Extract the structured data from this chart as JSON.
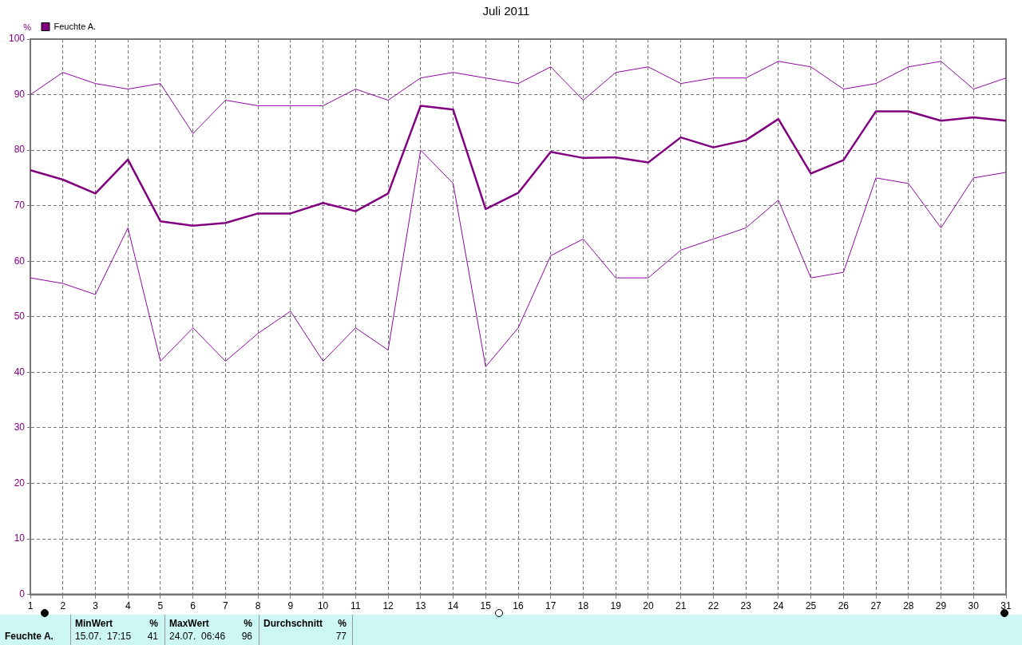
{
  "chart_data": {
    "type": "line",
    "title": "Juli 2011",
    "ylabel": "%",
    "x": [
      1,
      2,
      3,
      4,
      5,
      6,
      7,
      8,
      9,
      10,
      11,
      12,
      13,
      14,
      15,
      16,
      17,
      18,
      19,
      20,
      21,
      22,
      23,
      24,
      25,
      26,
      27,
      28,
      29,
      30,
      31
    ],
    "series": [
      {
        "color": "#8e08a0",
        "values": [
          90,
          94,
          92,
          91,
          92,
          83,
          89,
          88,
          88,
          88,
          91,
          89,
          93,
          94,
          93,
          92,
          95,
          89,
          94,
          95,
          92,
          93,
          93,
          96,
          95,
          91,
          92,
          95,
          96,
          91,
          93
        ]
      },
      {
        "name": "Feuchte A.",
        "color": "#800080",
        "values": [
          76.4,
          74.7,
          72.2,
          78.3,
          67.2,
          66.4,
          66.9,
          68.6,
          68.6,
          70.5,
          69,
          72.2,
          88,
          87.3,
          69.4,
          72.3,
          79.7,
          78.6,
          78.7,
          77.8,
          82.3,
          80.5,
          81.8,
          85.6,
          75.8,
          78.2,
          87,
          87,
          85.3,
          85.9,
          85.3
        ]
      },
      {
        "color": "#8e08a0",
        "values": [
          57,
          56,
          54,
          66,
          42,
          48,
          42,
          47,
          51,
          42,
          48,
          44,
          80,
          74,
          41,
          48,
          61,
          64,
          57,
          57,
          62,
          64,
          66,
          71,
          57,
          58,
          75,
          74,
          66,
          75,
          76
        ]
      }
    ],
    "xlim": [
      1,
      31
    ],
    "xticks": [
      1,
      2,
      3,
      4,
      5,
      6,
      7,
      8,
      9,
      10,
      11,
      12,
      13,
      14,
      15,
      16,
      17,
      18,
      19,
      20,
      21,
      22,
      23,
      24,
      25,
      26,
      27,
      28,
      29,
      30,
      31
    ],
    "ylim": [
      0,
      100
    ],
    "yticks": [
      0,
      10,
      20,
      30,
      40,
      50,
      60,
      70,
      80,
      90,
      100
    ],
    "grid": true,
    "legend": "top left",
    "marker": "none",
    "line_style": "solid",
    "annotations": [
      "Feuchte A.",
      "MinWert",
      "%",
      "15.07.  17:15",
      "41",
      "MaxWert",
      "%",
      "24.07.  06:46",
      "96",
      "Durchschnitt",
      "%",
      "77"
    ]
  }
}
